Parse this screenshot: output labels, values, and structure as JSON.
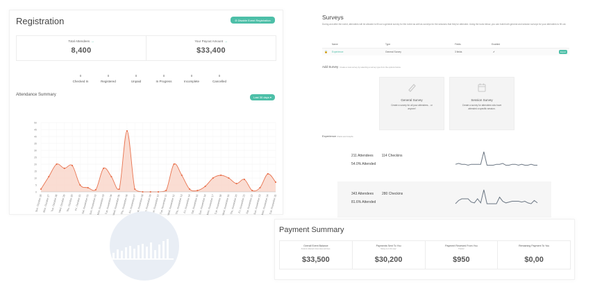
{
  "registration": {
    "title": "Registration",
    "disable_button": "⊘ Disable Event Registration",
    "stats": [
      {
        "label": "Total Attendees",
        "value": "8,400"
      },
      {
        "label": "Your Payout Amount",
        "value": "$33,400"
      }
    ],
    "counts": [
      {
        "value": "0",
        "label": "Checked In"
      },
      {
        "value": "0",
        "label": "Registered"
      },
      {
        "value": "0",
        "label": "Unpaid"
      },
      {
        "value": "0",
        "label": "In Progress"
      },
      {
        "value": "0",
        "label": "Incomplete"
      },
      {
        "value": "0",
        "label": "Cancelled"
      }
    ],
    "attendance_title": "Attendance Summary",
    "range_button": "Last 30 days ▾"
  },
  "chart_data": {
    "type": "area",
    "title": "Attendance Summary",
    "xlabel": "",
    "ylabel": "",
    "ylim": [
      0,
      50
    ],
    "yticks": [
      0,
      5,
      10,
      15,
      20,
      25,
      30,
      35,
      40,
      45,
      50
    ],
    "grid": true,
    "color": "#e8734f",
    "fill": "#f9d5c8",
    "categories": [
      "Sun, October 26",
      "Mon, October 27",
      "Tue, October 28",
      "Wed, October 29",
      "Thu, October 30",
      "Fri, October 31",
      "Sat, November 01",
      "Sun, November 02",
      "Mon, November 03",
      "Tue, November 04",
      "Wed, November 05",
      "Thu, November 06",
      "Fri, November 07",
      "Sat, November 08",
      "Sun, November 09",
      "Mon, November 10",
      "Tue, November 11",
      "Wed, November 12",
      "Thu, November 13",
      "Fri, November 14",
      "Sat, November 15",
      "Sun, November 16",
      "Mon, November 17",
      "Tue, November 18",
      "Wed, November 19",
      "Thu, November 20",
      "Fri, November 21",
      "Sat, November 22",
      "Sun, November 23",
      "Mon, November 24",
      "Tue, November 25"
    ],
    "values": [
      2,
      11,
      20,
      17,
      19,
      5,
      3,
      1.5,
      17,
      11,
      2,
      44,
      2,
      0,
      0,
      0,
      1,
      20,
      12,
      2,
      1,
      4,
      10,
      12,
      10,
      6,
      9,
      1,
      3,
      13,
      7
    ]
  },
  "surveys": {
    "title": "Surveys",
    "description": "During and after the event, attendees will be allowed to fill out a general survey for the event as well as surveys for the sessions that they've attended. Using the tools below, you can build both general and session surveys for your attendees to fill out.",
    "columns": [
      "Name",
      "Type",
      "Fields",
      "Enabled"
    ],
    "rows": [
      {
        "name": "Experience",
        "type": "General Survey",
        "fields": "3 fields",
        "enabled": "✔",
        "action": "Export"
      }
    ],
    "add_title": "Add Survey",
    "add_desc": "Create a new survey by selecting a survey type from the options below.",
    "cards": [
      {
        "title": "General Survey",
        "desc": "Create a survey for all your attendees... or anyone!"
      },
      {
        "title": "Session Survey",
        "desc": "Create a survey for attendees who have attended a specific session."
      }
    ],
    "experience_title": "Experience",
    "experience_sub": "Charts and Graphs",
    "experience_rows": [
      {
        "attendees": "211 Attendees",
        "checkins": "114 Checkins",
        "attended": "54.0% Attended",
        "spark": [
          6,
          7,
          6,
          6,
          5,
          6,
          6,
          6,
          6,
          20,
          5,
          5,
          5,
          6,
          6,
          7,
          5,
          5,
          6,
          6,
          5,
          6,
          5,
          5,
          6,
          5,
          5
        ]
      },
      {
        "attendees": "343 Attendees",
        "checkins": "280 Checkins",
        "attended": "81.6% Attended",
        "spark": [
          5,
          9,
          11,
          11,
          11,
          7,
          6,
          11,
          6,
          22,
          5,
          5,
          5,
          5,
          13,
          8,
          6,
          7,
          8,
          8,
          8,
          7,
          8,
          6,
          5,
          9,
          6
        ]
      }
    ]
  },
  "payment": {
    "title": "Payment Summary",
    "cells": [
      {
        "label": "Overall Event Balance",
        "sub": "Amount collected minus taxes and fees.",
        "value": "$33,500"
      },
      {
        "label": "Payments Sent To You",
        "sub": "Money is on the way!",
        "value": "$30,200"
      },
      {
        "label": "Payment Received From You",
        "sub": "Thanks!",
        "value": "$950"
      },
      {
        "label": "Remaining Payment To You",
        "sub": "",
        "value": "$0,00"
      }
    ]
  }
}
